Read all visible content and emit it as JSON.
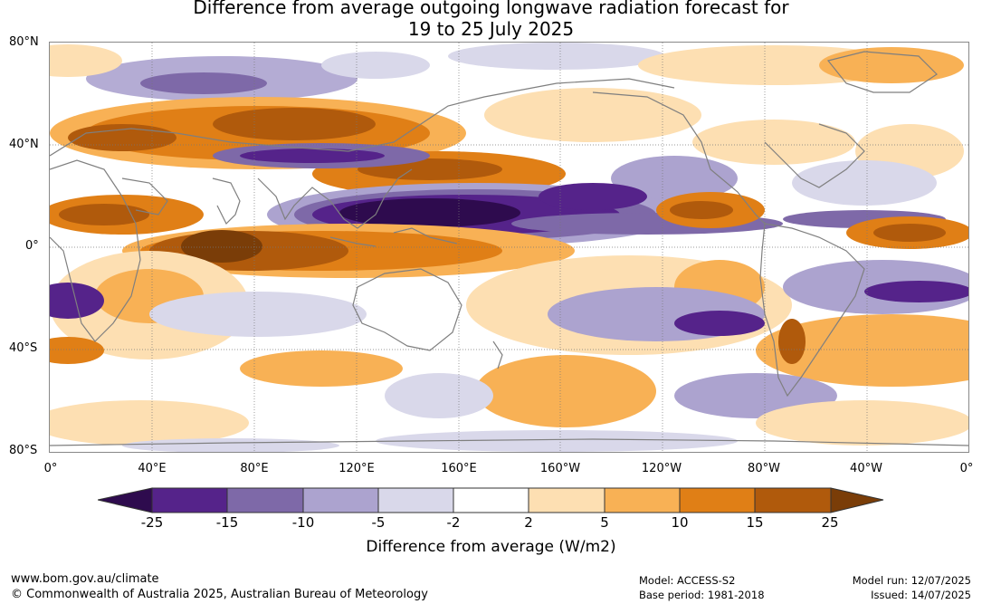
{
  "title": {
    "line1": "Difference from average outgoing longwave radiation forecast for",
    "line2": "19 to 25 July 2025"
  },
  "lat_labels": [
    "80°N",
    "40°N",
    "0°",
    "40°S",
    "80°S"
  ],
  "lon_labels": [
    "0°",
    "40°E",
    "80°E",
    "120°E",
    "160°E",
    "160°W",
    "120°W",
    "80°W",
    "40°W",
    "0°"
  ],
  "colorbar": {
    "label": "Difference from average (W/m2)",
    "ticks": [
      "-25",
      "-15",
      "-10",
      "-5",
      "-2",
      "2",
      "5",
      "10",
      "15",
      "25"
    ],
    "colors": {
      "below_-25": "#2e0b4e",
      "-25_to_-15": "#55238a",
      "-15_to_-10": "#7e69a8",
      "-10_to_-5": "#aca3cf",
      "-5_to_-2": "#d9d8ea",
      "-2_to_2": "#ffffff",
      "2_to_5": "#fddfb2",
      "5_to_10": "#f8b155",
      "10_to_15": "#e07f16",
      "15_to_25": "#b05a0c",
      "above_25": "#7a3d08"
    }
  },
  "footer": {
    "website": "www.bom.gov.au/climate",
    "copyright": "© Commonwealth of Australia 2025, Australian Bureau of Meteorology",
    "model": "Model: ACCESS-S2",
    "base_period": "Base period: 1981-2018",
    "model_run": "Model run: 12/07/2025",
    "issued": "Issued: 14/07/2025"
  }
}
